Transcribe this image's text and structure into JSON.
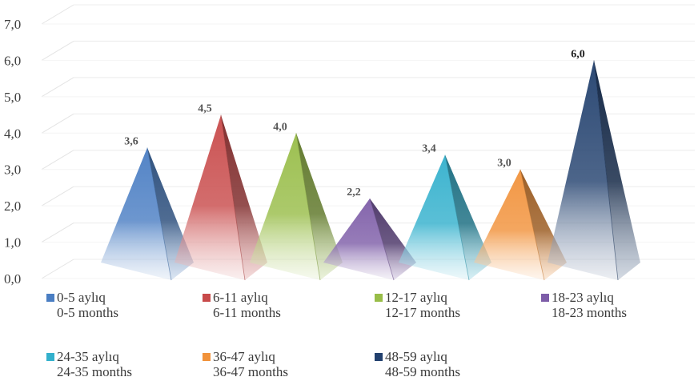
{
  "chart_data": {
    "type": "bar",
    "style": "3d-pyramid",
    "categories": [
      "0-5 aylıq",
      "6-11 aylıq",
      "12-17 aylıq",
      "18-23 aylıq",
      "24-35 aylıq",
      "36-47 aylıq",
      "48-59 aylıq"
    ],
    "values": [
      3.6,
      4.5,
      4.0,
      2.2,
      3.4,
      3.0,
      6.0
    ],
    "value_labels": [
      "3,6",
      "4,5",
      "4,0",
      "2,2",
      "3,4",
      "3,0",
      "6,0"
    ],
    "yticks": [
      "0,0",
      "1,0",
      "2,0",
      "3,0",
      "4,0",
      "5,0",
      "6,0",
      "7,0"
    ],
    "ylim": [
      0,
      7
    ],
    "grid": true,
    "legend_position": "bottom",
    "legend": [
      {
        "label": "0-5 aylıq",
        "sub": "0-5 months",
        "color": "#4a7ec3"
      },
      {
        "label": "6-11 aylıq",
        "sub": "6-11 months",
        "color": "#c84a4a"
      },
      {
        "label": "12-17 aylıq",
        "sub": "12-17 months",
        "color": "#98bd48"
      },
      {
        "label": "18-23 aylıq",
        "sub": "18-23 months",
        "color": "#7d5da8"
      },
      {
        "label": "24-35 aylıq",
        "sub": "24-35 months",
        "color": "#33b0cc"
      },
      {
        "label": "36-47 aylıq",
        "sub": "36-47 months",
        "color": "#f1923a"
      },
      {
        "label": "48-59 aylıq",
        "sub": "48-59 months",
        "color": "#22406e"
      }
    ]
  }
}
